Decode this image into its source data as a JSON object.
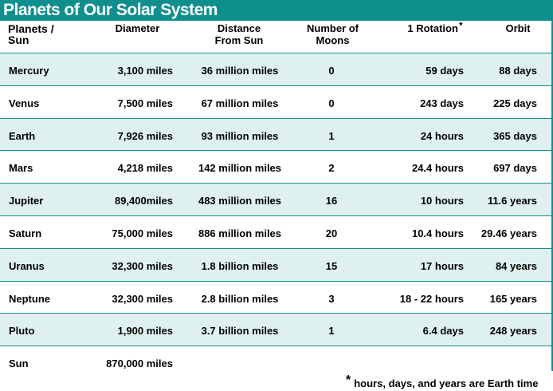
{
  "title": "Planets of Our Solar System",
  "headers": {
    "planets_line1": "Planets /",
    "planets_line2": "Sun",
    "diameter": "Diameter",
    "distance_line1": "Distance",
    "distance_line2": "From Sun",
    "moons_line1": "Number of",
    "moons_line2": "Moons",
    "rotation": "1 Rotation",
    "rotation_mark": "*",
    "orbit": "Orbit"
  },
  "rows": [
    {
      "name": "Mercury",
      "diameter": "3,100 miles",
      "distance": "36 million miles",
      "moons": "0",
      "rotation": "59 days",
      "orbit": "88 days"
    },
    {
      "name": "Venus",
      "diameter": "7,500 miles",
      "distance": "67 million miles",
      "moons": "0",
      "rotation": "243 days",
      "orbit": "225 days"
    },
    {
      "name": "Earth",
      "diameter": "7,926 miles",
      "distance": "93 million miles",
      "moons": "1",
      "rotation": "24 hours",
      "orbit": "365 days"
    },
    {
      "name": "Mars",
      "diameter": "4,218 miles",
      "distance": "142 million miles",
      "moons": "2",
      "rotation": "24.4 hours",
      "orbit": "697 days"
    },
    {
      "name": "Jupiter",
      "diameter": "89,400miles",
      "distance": "483 million miles",
      "moons": "16",
      "rotation": "10 hours",
      "orbit": "11.6 years"
    },
    {
      "name": "Saturn",
      "diameter": "75,000 miles",
      "distance": "886 million miles",
      "moons": "20",
      "rotation": "10.4 hours",
      "orbit": "29.46 years"
    },
    {
      "name": "Uranus",
      "diameter": "32,300 miles",
      "distance": "1.8 billion miles",
      "moons": "15",
      "rotation": "17 hours",
      "orbit": "84 years"
    },
    {
      "name": "Neptune",
      "diameter": "32,300 miles",
      "distance": "2.8 billion miles",
      "moons": "3",
      "rotation": "18 - 22 hours",
      "orbit": "165 years"
    },
    {
      "name": "Pluto",
      "diameter": "1,900 miles",
      "distance": "3.7 billion miles",
      "moons": "1",
      "rotation": "6.4 days",
      "orbit": "248 years"
    },
    {
      "name": "Sun",
      "diameter": "870,000 miles",
      "distance": "",
      "moons": "",
      "rotation": "",
      "orbit": ""
    }
  ],
  "footnote_mark": "*",
  "footnote": "hours, days, and years are Earth time",
  "colors": {
    "accent": "#0f8e8e",
    "shade": "#dff1ef"
  }
}
